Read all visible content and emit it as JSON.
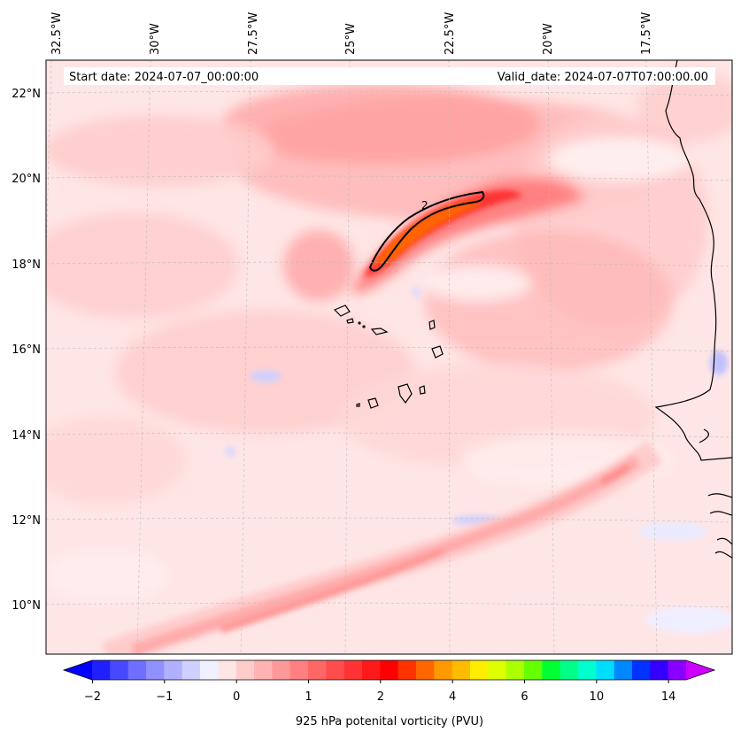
{
  "header": {
    "start_date": "Start date: 2024-07-07_00:00:00",
    "valid_date": "Valid_date: 2024-07-07T07:00:00.00"
  },
  "map": {
    "lon_labels": [
      "32.5°W",
      "30°W",
      "27.5°W",
      "25°W",
      "22.5°W",
      "20°W",
      "17.5°W"
    ],
    "lat_labels": [
      "22°N",
      "20°N",
      "18°N",
      "16°N",
      "14°N",
      "12°N",
      "10°N"
    ],
    "contour_label": "2",
    "colors": {
      "background": "#ffe6e6",
      "coast": "#000000"
    }
  },
  "colorbar": {
    "title": "925 hPa potenital vorticity (PVU)",
    "tick_labels": [
      "−2",
      "−1",
      "0",
      "1",
      "2",
      "4",
      "6",
      "10",
      "14"
    ],
    "under_color": "#0000ff",
    "over_color": "#cc00ff",
    "colors": [
      "#2020ff",
      "#4848ff",
      "#6f6fff",
      "#9090ff",
      "#b0b0ff",
      "#d0d0ff",
      "#f0f0ff",
      "#ffe6e6",
      "#ffcccc",
      "#ffb3b3",
      "#ff9999",
      "#ff8080",
      "#ff6666",
      "#ff4d4d",
      "#ff3333",
      "#ff1a1a",
      "#ff0000",
      "#ff3300",
      "#ff6600",
      "#ff9900",
      "#ffbb00",
      "#ffee00",
      "#ddff00",
      "#aaff00",
      "#66ff00",
      "#00ff33",
      "#00ff88",
      "#00ffcc",
      "#00ddff",
      "#0088ff",
      "#0033ff",
      "#3300ff",
      "#8800ff"
    ]
  }
}
